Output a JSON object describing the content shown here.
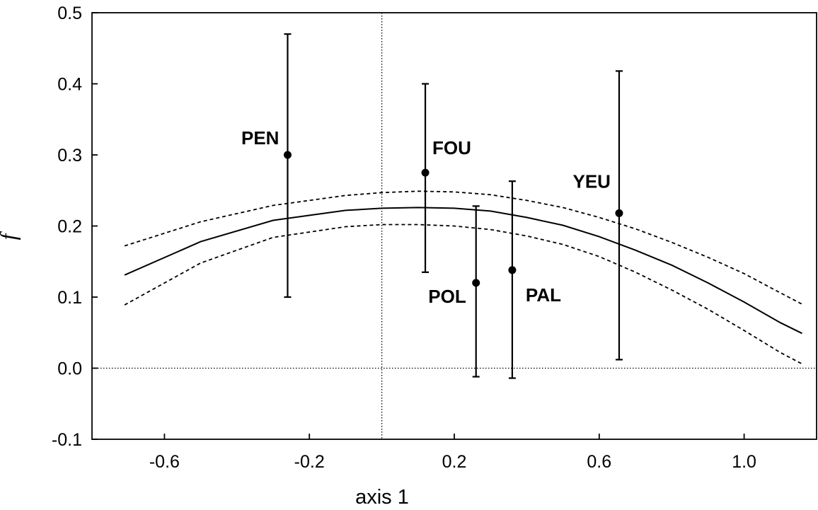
{
  "chart_data": {
    "type": "scatter",
    "title": "",
    "xlabel": "axis 1",
    "ylabel": "f̂",
    "xlim": [
      -0.8,
      1.2
    ],
    "ylim": [
      -0.1,
      0.5
    ],
    "xticks": [
      -0.6,
      -0.2,
      0.2,
      0.6,
      1.0
    ],
    "xtick_labels": [
      "-0.6",
      "-0.2",
      "0.2",
      "0.6",
      "1.0"
    ],
    "yticks": [
      -0.1,
      0.0,
      0.1,
      0.2,
      0.3,
      0.4,
      0.5
    ],
    "ytick_labels": [
      "-0.1",
      "0.0",
      "0.1",
      "0.2",
      "0.3",
      "0.4",
      "0.5"
    ],
    "grid": false,
    "reference_lines": {
      "x": 0.0,
      "y": 0.0
    },
    "points": [
      {
        "label": "PEN",
        "x": -0.26,
        "y": 0.3,
        "y_low": 0.1,
        "y_high": 0.47
      },
      {
        "label": "FOU",
        "x": 0.12,
        "y": 0.275,
        "y_low": 0.135,
        "y_high": 0.4
      },
      {
        "label": "POL",
        "x": 0.26,
        "y": 0.12,
        "y_low": -0.012,
        "y_high": 0.228
      },
      {
        "label": "PAL",
        "x": 0.36,
        "y": 0.138,
        "y_low": -0.014,
        "y_high": 0.263
      },
      {
        "label": "YEU",
        "x": 0.655,
        "y": 0.218,
        "y_low": 0.012,
        "y_high": 0.418
      }
    ],
    "fit_curve": {
      "x": [
        -0.71,
        -0.5,
        -0.3,
        -0.1,
        0.0,
        0.1,
        0.2,
        0.3,
        0.4,
        0.5,
        0.6,
        0.7,
        0.8,
        0.9,
        1.0,
        1.1,
        1.16
      ],
      "y": [
        0.131,
        0.178,
        0.208,
        0.222,
        0.225,
        0.226,
        0.225,
        0.221,
        0.212,
        0.201,
        0.185,
        0.166,
        0.145,
        0.12,
        0.093,
        0.064,
        0.049
      ]
    },
    "ci_upper": {
      "x": [
        -0.71,
        -0.5,
        -0.3,
        -0.1,
        0.0,
        0.1,
        0.2,
        0.3,
        0.4,
        0.5,
        0.6,
        0.7,
        0.8,
        0.9,
        1.0,
        1.1,
        1.16
      ],
      "y": [
        0.172,
        0.206,
        0.229,
        0.243,
        0.247,
        0.249,
        0.248,
        0.244,
        0.236,
        0.226,
        0.212,
        0.196,
        0.177,
        0.156,
        0.133,
        0.106,
        0.09
      ]
    },
    "ci_lower": {
      "x": [
        -0.71,
        -0.5,
        -0.3,
        -0.1,
        0.0,
        0.1,
        0.2,
        0.3,
        0.4,
        0.5,
        0.6,
        0.7,
        0.8,
        0.9,
        1.0,
        1.1,
        1.16
      ],
      "y": [
        0.089,
        0.148,
        0.184,
        0.199,
        0.202,
        0.202,
        0.2,
        0.195,
        0.186,
        0.174,
        0.157,
        0.135,
        0.11,
        0.083,
        0.053,
        0.022,
        0.006
      ]
    }
  }
}
